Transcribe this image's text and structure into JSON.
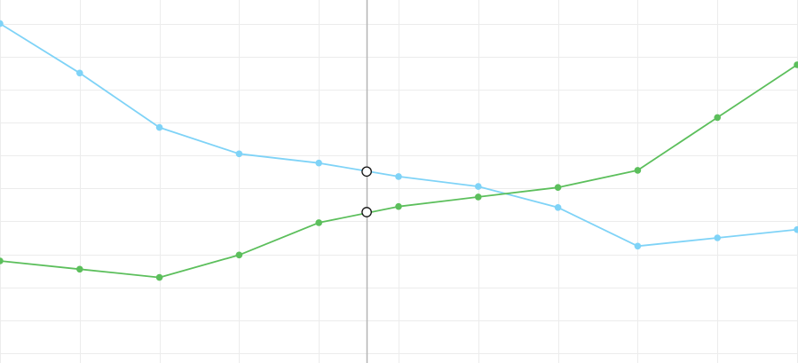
{
  "chart_data": {
    "type": "line",
    "title": "",
    "xlabel": "",
    "ylabel": "",
    "x": [
      0,
      1,
      2,
      3,
      4,
      5,
      6,
      7,
      8,
      9,
      10
    ],
    "xlim": [
      0,
      10
    ],
    "ylim": [
      0,
      10.5
    ],
    "grid": true,
    "legend": "none",
    "crosshair_x": 4.6,
    "series": [
      {
        "color": "#7fd3f7",
        "values": [
          10,
          8.5,
          6.85,
          6.05,
          5.77,
          5.36,
          5.06,
          4.42,
          3.25,
          3.5,
          3.75
        ],
        "hover_value": 5.51
      },
      {
        "color": "#5cbf5c",
        "values": [
          2.8,
          2.55,
          2.3,
          2.98,
          3.96,
          4.45,
          4.74,
          5.03,
          5.55,
          7.15,
          8.75
        ],
        "hover_value": 4.28
      }
    ]
  }
}
